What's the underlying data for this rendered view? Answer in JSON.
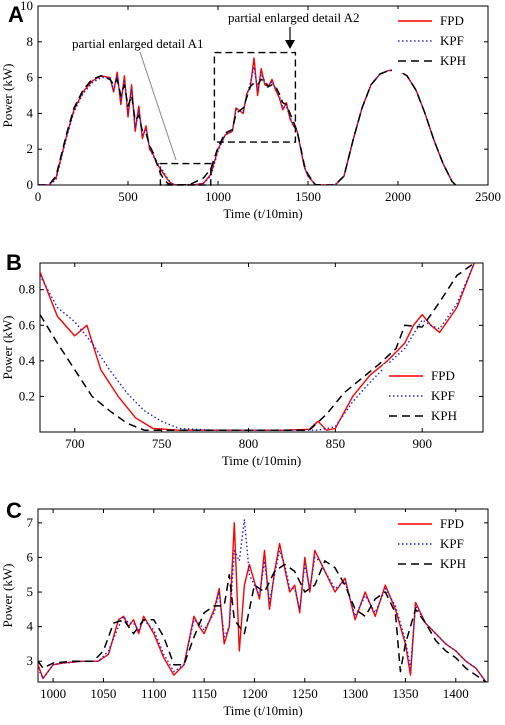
{
  "colors": {
    "FPD": "#ff0000",
    "KPF": "#1f1fd6",
    "KPH": "#000000"
  },
  "chart_data": [
    {
      "panel": "A",
      "type": "line",
      "xlabel": "Time (t/10min)",
      "ylabel": "Power (kW)",
      "xlim": [
        0,
        2500
      ],
      "ylim": [
        0,
        10
      ],
      "xticks": [
        0,
        500,
        1000,
        1500,
        2000,
        2500
      ],
      "yticks": [
        0,
        2,
        4,
        6,
        8,
        10
      ],
      "legend": {
        "position": "top-right",
        "entries": [
          "FPD",
          "KPF",
          "KPH"
        ]
      },
      "annotations": [
        {
          "text": "partial enlarged detail A1",
          "box_x": [
            680,
            960
          ],
          "box_y": [
            0,
            1.2
          ]
        },
        {
          "text": "partial enlarged detail A2",
          "box_x": [
            980,
            1430
          ],
          "box_y": [
            2.4,
            7.4
          ]
        }
      ],
      "series": [
        {
          "name": "FPD",
          "x": [
            0,
            60,
            100,
            140,
            160,
            180,
            200,
            250,
            300,
            350,
            400,
            420,
            440,
            460,
            480,
            500,
            520,
            540,
            560,
            580,
            600,
            620,
            640,
            660,
            680,
            700,
            720,
            740,
            760,
            800,
            840,
            880,
            920,
            960,
            1000,
            1040,
            1080,
            1100,
            1140,
            1160,
            1180,
            1200,
            1220,
            1240,
            1260,
            1280,
            1300,
            1320,
            1340,
            1360,
            1380,
            1400,
            1420,
            1440,
            1480,
            1500,
            1540,
            1600,
            1650,
            1700,
            1750,
            1800,
            1850,
            1900,
            1950,
            2000,
            2050,
            2100,
            2150,
            2200,
            2250,
            2300,
            2320
          ],
          "y": [
            0,
            0,
            0.4,
            2.0,
            2.8,
            3.5,
            4.2,
            5.2,
            5.8,
            6.1,
            6.0,
            5.2,
            6.3,
            4.5,
            6.1,
            3.8,
            5.6,
            3.0,
            4.4,
            2.6,
            3.3,
            2.0,
            1.7,
            1.2,
            0.9,
            0.6,
            0.3,
            0.1,
            0.01,
            0.01,
            0.01,
            0.02,
            0.1,
            0.6,
            2.0,
            2.8,
            3.0,
            4.3,
            4.0,
            5.1,
            5.5,
            7.1,
            5.0,
            6.5,
            5.6,
            5.5,
            5.9,
            5.3,
            4.9,
            4.2,
            4.6,
            3.7,
            3.3,
            3.0,
            1.0,
            0.5,
            0.02,
            0,
            0,
            0.5,
            2.5,
            4.3,
            5.6,
            6.2,
            6.4,
            6.4,
            6.1,
            5.3,
            4.0,
            2.5,
            1.2,
            0.2,
            0
          ]
        },
        {
          "name": "KPF",
          "x": [
            0,
            60,
            100,
            140,
            160,
            180,
            200,
            250,
            300,
            350,
            400,
            420,
            440,
            460,
            480,
            500,
            520,
            540,
            560,
            580,
            600,
            620,
            640,
            660,
            680,
            700,
            720,
            740,
            760,
            800,
            840,
            880,
            920,
            960,
            1000,
            1040,
            1080,
            1100,
            1140,
            1160,
            1180,
            1200,
            1220,
            1240,
            1260,
            1280,
            1300,
            1320,
            1340,
            1360,
            1380,
            1400,
            1420,
            1440,
            1480,
            1500,
            1540,
            1600,
            1650,
            1700,
            1750,
            1800,
            1850,
            1900,
            1950,
            2000,
            2050,
            2100,
            2150,
            2200,
            2250,
            2300,
            2320
          ],
          "y": [
            0,
            0,
            0.3,
            1.9,
            2.7,
            3.4,
            4.1,
            5.1,
            5.7,
            6.0,
            6.0,
            5.3,
            6.1,
            4.7,
            5.9,
            4.0,
            5.4,
            3.2,
            4.2,
            2.8,
            3.1,
            2.1,
            1.6,
            1.3,
            1.0,
            0.7,
            0.35,
            0.1,
            0.01,
            0.01,
            0.01,
            0.02,
            0.1,
            0.5,
            1.9,
            2.8,
            3.0,
            4.2,
            4.1,
            5.0,
            5.7,
            6.6,
            5.3,
            6.2,
            5.8,
            5.4,
            5.8,
            5.4,
            5.0,
            4.3,
            4.4,
            3.8,
            3.3,
            3.0,
            1.0,
            0.5,
            0.02,
            0,
            0,
            0.5,
            2.5,
            4.3,
            5.6,
            6.2,
            6.4,
            6.4,
            6.1,
            5.3,
            4.0,
            2.5,
            1.2,
            0.2,
            0
          ]
        },
        {
          "name": "KPH",
          "x": [
            0,
            60,
            100,
            140,
            160,
            180,
            200,
            250,
            300,
            350,
            400,
            420,
            440,
            460,
            480,
            500,
            520,
            540,
            560,
            580,
            600,
            620,
            640,
            660,
            680,
            700,
            720,
            740,
            760,
            800,
            840,
            880,
            920,
            960,
            1000,
            1040,
            1080,
            1100,
            1140,
            1160,
            1180,
            1200,
            1220,
            1240,
            1260,
            1280,
            1300,
            1320,
            1340,
            1360,
            1380,
            1400,
            1420,
            1440,
            1480,
            1500,
            1540,
            1600,
            1650,
            1700,
            1750,
            1800,
            1850,
            1900,
            1950,
            2000,
            2050,
            2100,
            2150,
            2200,
            2250,
            2300,
            2320
          ],
          "y": [
            0,
            0,
            0.5,
            2.1,
            2.9,
            3.6,
            4.3,
            5.3,
            5.9,
            6.1,
            5.9,
            5.6,
            5.9,
            5.0,
            5.6,
            4.4,
            5.0,
            3.6,
            3.9,
            3.0,
            2.9,
            2.2,
            1.8,
            1.2,
            0.65,
            0.3,
            0.1,
            0.02,
            0.01,
            0.01,
            0.01,
            0.2,
            0.4,
            0.9,
            2.1,
            2.9,
            3.1,
            4.0,
            4.3,
            4.9,
            5.5,
            5.7,
            5.6,
            5.9,
            5.8,
            5.5,
            5.6,
            5.5,
            5.1,
            4.6,
            4.5,
            4.0,
            3.5,
            3.0,
            1.1,
            0.6,
            0.02,
            0,
            0,
            0.5,
            2.5,
            4.3,
            5.6,
            6.2,
            6.4,
            6.4,
            6.1,
            5.3,
            4.0,
            2.5,
            1.2,
            0.2,
            0
          ]
        }
      ]
    },
    {
      "panel": "B",
      "type": "line",
      "xlabel": "Time (t/10min)",
      "ylabel": "Power (kW)",
      "xlim": [
        680,
        935
      ],
      "ylim": [
        0,
        0.95
      ],
      "xticks": [
        700,
        750,
        800,
        850,
        900
      ],
      "yticks": [
        0.2,
        0.4,
        0.6,
        0.8
      ],
      "legend": {
        "position": "bottom-right",
        "entries": [
          "FPD",
          "KPF",
          "KPH"
        ]
      },
      "series": [
        {
          "name": "FPD",
          "x": [
            680,
            690,
            700,
            707,
            715,
            725,
            735,
            745,
            760,
            780,
            800,
            820,
            835,
            840,
            845,
            850,
            860,
            870,
            880,
            890,
            895,
            900,
            905,
            910,
            920,
            930
          ],
          "y": [
            0.9,
            0.65,
            0.54,
            0.6,
            0.35,
            0.2,
            0.08,
            0.02,
            0.01,
            0.01,
            0.01,
            0.01,
            0.015,
            0.06,
            0.01,
            0.02,
            0.2,
            0.32,
            0.4,
            0.5,
            0.6,
            0.66,
            0.6,
            0.56,
            0.7,
            0.95
          ]
        },
        {
          "name": "KPF",
          "x": [
            680,
            690,
            700,
            710,
            720,
            730,
            740,
            750,
            760,
            780,
            800,
            820,
            840,
            850,
            860,
            870,
            880,
            890,
            900,
            905,
            910,
            920,
            930
          ],
          "y": [
            0.88,
            0.7,
            0.62,
            0.5,
            0.35,
            0.22,
            0.12,
            0.06,
            0.02,
            0.01,
            0.01,
            0.01,
            0.01,
            0.03,
            0.17,
            0.28,
            0.38,
            0.47,
            0.63,
            0.6,
            0.58,
            0.72,
            0.95
          ]
        },
        {
          "name": "KPH",
          "x": [
            680,
            690,
            700,
            710,
            720,
            730,
            740,
            750,
            760,
            780,
            800,
            820,
            835,
            845,
            855,
            865,
            875,
            885,
            890,
            900,
            910,
            920,
            930
          ],
          "y": [
            0.66,
            0.5,
            0.35,
            0.2,
            0.12,
            0.05,
            0.01,
            0.01,
            0.01,
            0.01,
            0.01,
            0.01,
            0.01,
            0.1,
            0.22,
            0.3,
            0.38,
            0.47,
            0.6,
            0.59,
            0.73,
            0.88,
            0.95
          ]
        }
      ]
    },
    {
      "panel": "C",
      "type": "line",
      "xlabel": "Time (t/10min)",
      "ylabel": "Power (kW)",
      "xlim": [
        985,
        1432
      ],
      "ylim": [
        2.4,
        7.4
      ],
      "xticks": [
        1000,
        1050,
        1100,
        1150,
        1200,
        1250,
        1300,
        1350,
        1400
      ],
      "yticks": [
        3,
        4,
        5,
        6,
        7
      ],
      "legend": {
        "position": "top-right",
        "entries": [
          "FPD",
          "KPF",
          "KPH"
        ]
      },
      "series": [
        {
          "name": "FPD",
          "x": [
            985,
            990,
            1000,
            1010,
            1030,
            1045,
            1055,
            1065,
            1070,
            1075,
            1080,
            1085,
            1090,
            1100,
            1110,
            1120,
            1130,
            1140,
            1145,
            1150,
            1160,
            1165,
            1170,
            1175,
            1180,
            1185,
            1190,
            1195,
            1200,
            1205,
            1210,
            1215,
            1220,
            1225,
            1230,
            1235,
            1240,
            1245,
            1250,
            1255,
            1260,
            1265,
            1270,
            1280,
            1290,
            1300,
            1310,
            1320,
            1330,
            1340,
            1350,
            1355,
            1360,
            1370,
            1380,
            1390,
            1400,
            1410,
            1420,
            1430
          ],
          "y": [
            2.9,
            2.5,
            2.9,
            2.95,
            3.0,
            3.0,
            3.2,
            4.2,
            4.3,
            4.0,
            4.2,
            3.8,
            4.3,
            3.8,
            3.1,
            2.6,
            2.9,
            4.3,
            4.0,
            3.8,
            4.5,
            5.1,
            3.5,
            4.0,
            7.0,
            3.3,
            5.2,
            5.8,
            5.3,
            4.8,
            6.2,
            4.5,
            5.6,
            6.4,
            5.7,
            5.0,
            5.2,
            4.4,
            6.0,
            5.0,
            6.2,
            5.9,
            5.6,
            5.0,
            5.4,
            4.2,
            5.0,
            4.3,
            5.2,
            4.5,
            3.5,
            2.6,
            4.7,
            4.1,
            3.8,
            3.5,
            3.3,
            3.0,
            2.8,
            2.4
          ]
        },
        {
          "name": "KPF",
          "x": [
            985,
            990,
            1000,
            1010,
            1030,
            1045,
            1055,
            1065,
            1070,
            1075,
            1080,
            1085,
            1090,
            1100,
            1110,
            1120,
            1130,
            1140,
            1145,
            1150,
            1160,
            1165,
            1170,
            1175,
            1180,
            1185,
            1190,
            1195,
            1200,
            1205,
            1210,
            1215,
            1220,
            1225,
            1230,
            1235,
            1240,
            1245,
            1250,
            1255,
            1260,
            1265,
            1270,
            1280,
            1290,
            1300,
            1310,
            1320,
            1330,
            1340,
            1350,
            1355,
            1360,
            1370,
            1380,
            1390,
            1400,
            1410,
            1420,
            1430
          ],
          "y": [
            2.8,
            2.5,
            2.9,
            2.95,
            3.0,
            3.0,
            3.3,
            4.0,
            4.3,
            4.1,
            4.1,
            3.9,
            4.2,
            3.9,
            3.2,
            2.7,
            2.9,
            4.2,
            4.1,
            3.9,
            4.4,
            5.0,
            3.7,
            4.0,
            6.2,
            5.9,
            7.1,
            5.5,
            5.2,
            4.9,
            5.9,
            4.7,
            5.5,
            6.2,
            5.8,
            5.1,
            5.1,
            4.5,
            5.8,
            5.1,
            6.0,
            5.9,
            5.6,
            5.1,
            5.3,
            4.3,
            4.9,
            4.4,
            5.1,
            4.6,
            3.6,
            2.8,
            4.6,
            4.1,
            3.8,
            3.5,
            3.3,
            3.0,
            2.8,
            2.4
          ]
        },
        {
          "name": "KPH",
          "x": [
            985,
            990,
            1000,
            1020,
            1040,
            1050,
            1060,
            1070,
            1080,
            1090,
            1100,
            1110,
            1120,
            1130,
            1140,
            1150,
            1160,
            1170,
            1175,
            1180,
            1190,
            1200,
            1210,
            1220,
            1230,
            1240,
            1250,
            1260,
            1270,
            1280,
            1290,
            1300,
            1310,
            1320,
            1330,
            1340,
            1345,
            1350,
            1360,
            1370,
            1380,
            1390,
            1400,
            1410,
            1420,
            1430
          ],
          "y": [
            3.0,
            2.8,
            2.95,
            3.0,
            3.0,
            3.3,
            4.1,
            4.2,
            3.8,
            4.2,
            4.2,
            3.7,
            2.9,
            2.9,
            3.7,
            4.4,
            4.6,
            4.6,
            5.5,
            4.2,
            3.8,
            5.2,
            5.0,
            5.6,
            5.8,
            5.6,
            5.0,
            5.2,
            5.9,
            5.7,
            5.2,
            4.5,
            4.3,
            4.8,
            5.0,
            4.4,
            2.7,
            3.5,
            4.5,
            4.1,
            3.6,
            3.3,
            3.1,
            2.8,
            2.6,
            2.4
          ]
        }
      ]
    }
  ]
}
